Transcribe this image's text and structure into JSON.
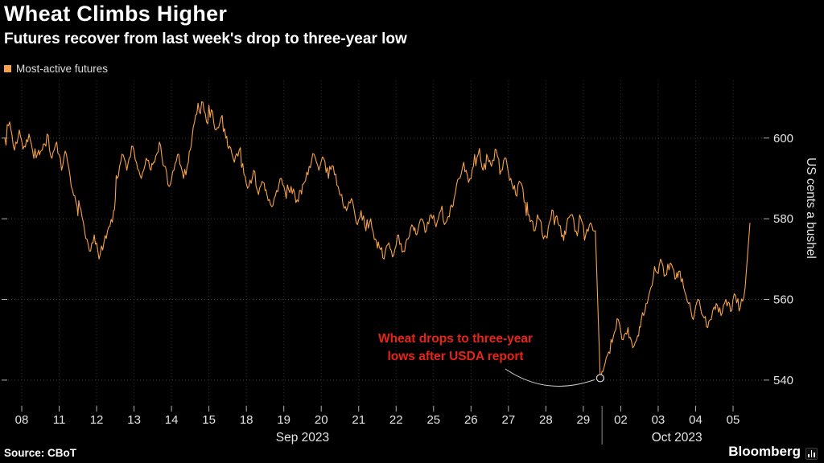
{
  "header": {
    "title": "Wheat Climbs Higher",
    "subtitle": "Futures recover from last week's drop to three-year low"
  },
  "legend": {
    "label": "Most-active futures",
    "swatch_color": "#f7a24a"
  },
  "annotation": {
    "line1": "Wheat drops to three-year",
    "line2": "lows after USDA report",
    "color": "#e8231a"
  },
  "footer": {
    "source": "Source: CBoT",
    "brand": "Bloomberg"
  },
  "chart_data": {
    "type": "line",
    "title": "Wheat Climbs Higher",
    "subtitle": "Futures recover from last week's drop to three-year low",
    "xlabel": "",
    "ylabel": "US cents a bushel",
    "y_ticks": [
      540,
      560,
      580,
      600
    ],
    "ylim": [
      533.6,
      614.3
    ],
    "grid": "dotted",
    "legend_position": "top-left",
    "x_groups": [
      {
        "label": "Sep 2023",
        "from": 0,
        "to": 15
      },
      {
        "label": "Oct 2023",
        "from": 16,
        "to": 19
      }
    ],
    "annotation_target": {
      "day_index": 15,
      "price": 540.5
    },
    "series": [
      {
        "name": "Most-active futures",
        "color": "#f7a24a",
        "days": [
          {
            "label": "08",
            "values": [
              600,
              604,
              597,
              602,
              598,
              601,
              595,
              597
            ]
          },
          {
            "label": "11",
            "values": [
              597,
              601,
              595,
              599,
              592,
              596,
              588,
              584
            ]
          },
          {
            "label": "12",
            "values": [
              583,
              577,
              572,
              576,
              570,
              574,
              578,
              582
            ]
          },
          {
            "label": "13",
            "values": [
              590,
              596,
              592,
              598,
              594,
              590,
              595,
              592
            ]
          },
          {
            "label": "14",
            "values": [
              594,
              599,
              593,
              588,
              592,
              596,
              590,
              594
            ]
          },
          {
            "label": "15",
            "values": [
              600,
              606,
              609,
              604,
              607,
              602,
              605,
              600
            ]
          },
          {
            "label": "18",
            "values": [
              598,
              594,
              597,
              591,
              588,
              592,
              586,
              589
            ]
          },
          {
            "label": "19",
            "values": [
              586,
              583,
              587,
              590,
              585,
              588,
              584,
              587
            ]
          },
          {
            "label": "20",
            "values": [
              589,
              593,
              596,
              592,
              595,
              590,
              593,
              588
            ]
          },
          {
            "label": "21",
            "values": [
              586,
              582,
              585,
              579,
              582,
              577,
              580,
              575
            ]
          },
          {
            "label": "22",
            "values": [
              573,
              570,
              574,
              571,
              576,
              572,
              575,
              578
            ]
          },
          {
            "label": "25",
            "values": [
              576,
              580,
              577,
              581,
              578,
              582,
              579,
              583
            ]
          },
          {
            "label": "26",
            "values": [
              585,
              590,
              594,
              589,
              593,
              596,
              592,
              595
            ]
          },
          {
            "label": "27",
            "values": [
              593,
              597,
              592,
              595,
              590,
              586,
              589,
              584
            ]
          },
          {
            "label": "28",
            "values": [
              581,
              577,
              580,
              575,
              578,
              582,
              579,
              576
            ]
          },
          {
            "label": "29",
            "values": [
              578,
              581,
              577,
              580,
              576,
              579,
              577,
              540.5
            ]
          },
          {
            "label": "02",
            "values": [
              543,
              547,
              551,
              555,
              550,
              553,
              548,
              551
            ]
          },
          {
            "label": "03",
            "values": [
              555,
              559,
              563,
              567,
              570,
              566,
              569,
              565
            ]
          },
          {
            "label": "04",
            "values": [
              567,
              563,
              559,
              555,
              560,
              556,
              553,
              557
            ]
          },
          {
            "label": "05",
            "values": [
              559,
              556,
              560,
              557,
              561,
              558,
              563,
              579
            ]
          }
        ]
      }
    ]
  }
}
